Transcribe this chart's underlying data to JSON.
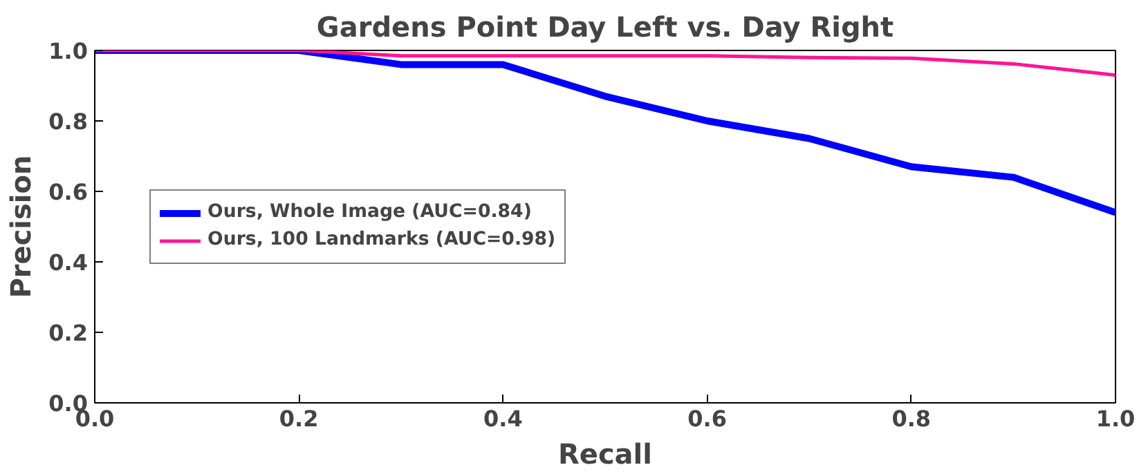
{
  "chart_data": {
    "type": "line",
    "title": "Gardens Point Day Left vs. Day Right",
    "xlabel": "Recall",
    "ylabel": "Precision",
    "xlim": [
      0,
      1
    ],
    "ylim": [
      0,
      1
    ],
    "xticks": [
      {
        "value": 0,
        "label": "0.0"
      },
      {
        "value": 0.2,
        "label": "0.2"
      },
      {
        "value": 0.4,
        "label": "0.4"
      },
      {
        "value": 0.6,
        "label": "0.6"
      },
      {
        "value": 0.8,
        "label": "0.8"
      },
      {
        "value": 1,
        "label": "1.0"
      }
    ],
    "yticks": [
      {
        "value": 0,
        "label": "0.0"
      },
      {
        "value": 0.2,
        "label": "0.2"
      },
      {
        "value": 0.4,
        "label": "0.4"
      },
      {
        "value": 0.6,
        "label": "0.6"
      },
      {
        "value": 0.8,
        "label": "0.8"
      },
      {
        "value": 1,
        "label": "1.0"
      }
    ],
    "x": [
      0,
      0.1,
      0.2,
      0.3,
      0.4,
      0.5,
      0.6,
      0.7,
      0.8,
      0.9,
      1.0
    ],
    "series": [
      {
        "name": "Ours, Whole Image (AUC=0.84)",
        "color": "#0000ff",
        "values": [
          1.0,
          1.0,
          1.0,
          0.96,
          0.96,
          0.87,
          0.8,
          0.75,
          0.67,
          0.64,
          0.54
        ]
      },
      {
        "name": "Ours, 100 Landmarks (AUC=0.98)",
        "color": "#ff1493",
        "values": [
          1.0,
          1.0,
          1.0,
          0.985,
          0.985,
          0.985,
          0.985,
          0.98,
          0.978,
          0.962,
          0.93
        ]
      }
    ],
    "grid": false,
    "legend": "left",
    "marker": "none",
    "line_style": "solid"
  }
}
